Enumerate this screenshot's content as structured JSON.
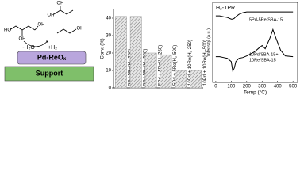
{
  "scheme": {
    "molecule_labels": [
      "HO",
      "OH",
      "OH",
      "OH",
      "OH",
      "OH"
    ],
    "minus_water": "-H₂O",
    "plus_hydrogen": "+H₂",
    "catalyst": "Pd-ReOₓ",
    "support": "Support"
  },
  "chart_data": [
    {
      "type": "bar",
      "ylabel": "Conv. (%)",
      "categories": [
        "5Pd-5Re(H₂-250)",
        "5Pd-5Re(H₂-500)",
        "5Pd + 5Re(H₂-250)",
        "5Pd + 5Re(H₂-500)",
        "10Pd + 10Re(H₂-250)",
        "10Pd + 10Re(H₂-500)"
      ],
      "values": [
        41,
        41,
        20,
        19,
        10,
        10
      ],
      "color": "#9a9a9a",
      "ylim": [
        0,
        45
      ],
      "yticks": [
        0,
        10,
        20,
        30,
        40
      ]
    },
    {
      "type": "line",
      "title": "H₂-TPR",
      "xlabel": "Temp (°C)",
      "ylabel": "Intensity (a.u.)",
      "annotations": [
        "5Pd-5Re/SBA-15",
        "10Pd/SBA-15+",
        "10Re/SBA-15"
      ],
      "x": [
        0,
        25,
        50,
        75,
        100,
        110,
        120,
        130,
        150,
        175,
        200,
        250,
        280,
        300,
        320,
        350,
        370,
        390,
        420,
        450,
        500
      ],
      "series": [
        {
          "color": "#000000",
          "values": [
            8.3,
            8.3,
            8.2,
            8.1,
            7.9,
            7.9,
            8.0,
            8.2,
            8.5,
            8.7,
            8.8,
            8.8,
            8.8,
            8.8,
            8.8,
            8.8,
            8.8,
            8.8,
            8.8,
            8.8,
            8.8
          ]
        },
        {
          "color": "#000000",
          "values": [
            3.2,
            3.2,
            3.1,
            3.0,
            2.6,
            1.4,
            1.8,
            2.6,
            3.0,
            3.1,
            3.3,
            3.8,
            4.3,
            4.6,
            4.2,
            5.5,
            6.6,
            5.5,
            4.0,
            3.3,
            3.2
          ]
        }
      ],
      "xlim": [
        -20,
        530
      ],
      "ylim": [
        0,
        10
      ],
      "xticks": [
        0,
        100,
        200,
        300,
        400,
        500
      ]
    }
  ]
}
